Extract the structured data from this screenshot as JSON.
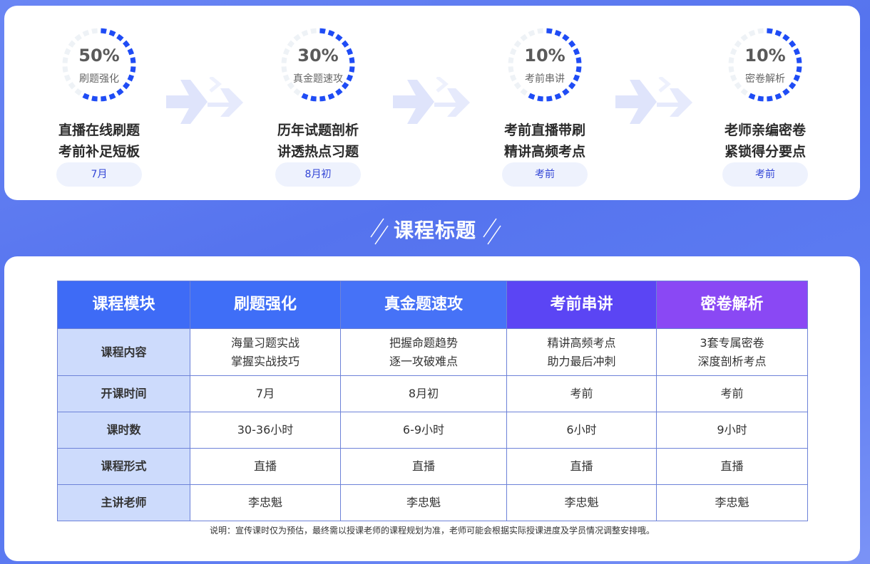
{
  "stages": [
    {
      "percent": "50%",
      "ring_label": "刷题强化",
      "line1": "直播在线刷题",
      "line2": "考前补足短板",
      "time": "7月"
    },
    {
      "percent": "30%",
      "ring_label": "真金题速攻",
      "line1": "历年试题剖析",
      "line2": "讲透热点习题",
      "time": "8月初"
    },
    {
      "percent": "10%",
      "ring_label": "考前串讲",
      "line1": "考前直播带刷",
      "line2": "精讲高频考点",
      "time": "考前"
    },
    {
      "percent": "10%",
      "ring_label": "密卷解析",
      "line1": "老师亲编密卷",
      "line2": "紧锁得分要点",
      "time": "考前"
    }
  ],
  "section_title": "课程标题",
  "table": {
    "headers": [
      "课程模块",
      "刷题强化",
      "真金题速攻",
      "考前串讲",
      "密卷解析"
    ],
    "header_colors": [
      "#3e6bf6",
      "#3f6ef7",
      "#4672f7",
      "#5b45f4",
      "#8a48f4"
    ],
    "rows": [
      {
        "label": "课程内容",
        "cells": [
          [
            "海量习题实战",
            "掌握实战技巧"
          ],
          [
            "把握命题趋势",
            "逐一攻破难点"
          ],
          [
            "精讲高频考点",
            "助力最后冲刺"
          ],
          [
            "3套专属密卷",
            "深度剖析考点"
          ]
        ]
      },
      {
        "label": "开课时间",
        "cells": [
          "7月",
          "8月初",
          "考前",
          "考前"
        ]
      },
      {
        "label": "课时数",
        "cells": [
          "30-36小时",
          "6-9小时",
          "6小时",
          "9小时"
        ]
      },
      {
        "label": "课程形式",
        "cells": [
          "直播",
          "直播",
          "直播",
          "直播"
        ]
      },
      {
        "label": "主讲老师",
        "cells": [
          "李忠魁",
          "李忠魁",
          "李忠魁",
          "李忠魁"
        ]
      }
    ]
  },
  "note": "说明：宣传课时仅为预估，最终需以授课老师的课程规划为准，老师可能会根据实际授课进度及学员情况调整安排哦。",
  "colors": {
    "accent": "#1f4cf5",
    "ring_track": "#eef2f6",
    "pill_bg": "#eef2fd"
  }
}
